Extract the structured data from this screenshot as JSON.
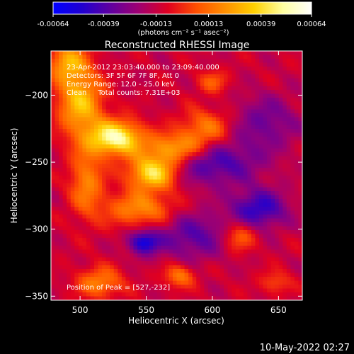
{
  "colorbar": {
    "ticks": [
      "-0.00064",
      "-0.00039",
      "-0.00013",
      "0.00013",
      "0.00039",
      "0.00064"
    ],
    "tick_values": [
      -0.00064,
      -0.00039,
      -0.00013,
      0.00013,
      0.00039,
      0.00064
    ],
    "range": [
      -0.00064,
      0.00064
    ],
    "unit_label": "(photons cm⁻² s⁻¹ asec⁻²)",
    "palette": [
      "#0000ff",
      "#2000d0",
      "#6000a0",
      "#a00070",
      "#e00020",
      "#ff5000",
      "#ff9000",
      "#ffd000",
      "#ffffa0",
      "#ffffff"
    ]
  },
  "chart_data": {
    "type": "heatmap",
    "title": "Reconstructed RHESSI Image",
    "xlabel": "Heliocentric X (arcsec)",
    "ylabel": "Heliocentric Y (arcsec)",
    "xlim": [
      478,
      668
    ],
    "ylim": [
      -353,
      -167
    ],
    "xticks": [
      500,
      550,
      600,
      650
    ],
    "yticks": [
      -200,
      -250,
      -300,
      -350
    ],
    "annotation_lines": [
      "23-Apr-2012 23:03:40.000 to 23:09:40.000",
      "Detectors: 3F 5F 6F 7F 8F, Att 0",
      "Energy Range: 12.0 - 25.0 keV",
      "Clean     Total counts: 7.31E+03"
    ],
    "peak_label": "Position of Peak = [527,-232]",
    "peak": [
      527,
      -232
    ],
    "sources": [
      {
        "x": 527,
        "y": -232,
        "sx": 14,
        "sy": 9,
        "amp": 0.00064
      },
      {
        "x": 555,
        "y": -258,
        "sx": 13,
        "sy": 9,
        "amp": 0.00056
      },
      {
        "x": 572,
        "y": -240,
        "sx": 16,
        "sy": 8,
        "amp": 0.0004
      },
      {
        "x": 595,
        "y": -225,
        "sx": 14,
        "sy": 10,
        "amp": 0.00028
      },
      {
        "x": 500,
        "y": -205,
        "sx": 12,
        "sy": 18,
        "amp": 0.00044
      },
      {
        "x": 490,
        "y": -175,
        "sx": 10,
        "sy": 10,
        "amp": 0.00035
      },
      {
        "x": 545,
        "y": -285,
        "sx": 18,
        "sy": 9,
        "amp": 0.00032
      },
      {
        "x": 505,
        "y": -265,
        "sx": 9,
        "sy": 18,
        "amp": 0.0003
      },
      {
        "x": 515,
        "y": -340,
        "sx": 12,
        "sy": 8,
        "amp": 0.0003
      },
      {
        "x": 575,
        "y": -335,
        "sx": 8,
        "sy": 6,
        "amp": 0.00028
      },
      {
        "x": 620,
        "y": -305,
        "sx": 9,
        "sy": 8,
        "amp": 0.00026
      },
      {
        "x": 600,
        "y": -190,
        "sx": 8,
        "sy": 6,
        "amp": 0.0002
      },
      {
        "x": 648,
        "y": -340,
        "sx": 8,
        "sy": 6,
        "amp": 0.00018
      },
      {
        "x": 548,
        "y": -310,
        "sx": 8,
        "sy": 6,
        "amp": -0.0004
      },
      {
        "x": 600,
        "y": -250,
        "sx": 25,
        "sy": 12,
        "amp": -0.0003
      },
      {
        "x": 635,
        "y": -285,
        "sx": 15,
        "sy": 10,
        "amp": -0.00035
      },
      {
        "x": 585,
        "y": -305,
        "sx": 20,
        "sy": 12,
        "amp": -0.00025
      },
      {
        "x": 640,
        "y": -220,
        "sx": 18,
        "sy": 14,
        "amp": -0.0002
      }
    ],
    "grid": false
  },
  "footer": {
    "timestamp": "10-May-2022 02:27"
  }
}
